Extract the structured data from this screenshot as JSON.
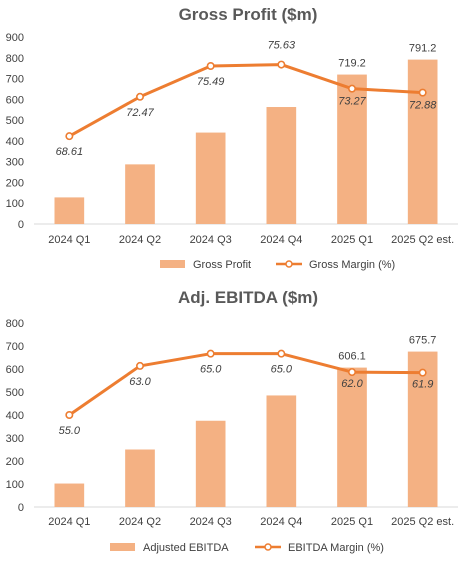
{
  "colors": {
    "bar": "#f4b183",
    "line": "#ed7d31",
    "axis": "#d9d9d9",
    "text": "#404040",
    "title": "#595959"
  },
  "chart_data": [
    {
      "type": "bar",
      "title": "Gross Profit ($m)",
      "categories": [
        "2024 Q1",
        "2024 Q2",
        "2024 Q3",
        "2024 Q4",
        "2025 Q1",
        "2025 Q2 est."
      ],
      "yticks": [
        "0",
        "100",
        "200",
        "300",
        "400",
        "500",
        "600",
        "700",
        "800",
        "900"
      ],
      "ylim": [
        0,
        900
      ],
      "series": [
        {
          "name": "Gross Profit",
          "type": "bar",
          "values": [
            128,
            287,
            440,
            563,
            719.2,
            791.2
          ],
          "labels": [
            "",
            "",
            "",
            "",
            "719.2",
            "791.2"
          ]
        },
        {
          "name": "Gross Margin (%)",
          "type": "line",
          "values": [
            68.61,
            72.47,
            75.49,
            75.63,
            73.27,
            72.88
          ],
          "labels": [
            "68.61",
            "72.47",
            "75.49",
            "75.63",
            "73.27",
            "72.88"
          ]
        }
      ],
      "legend_position": "bottom",
      "grid": false
    },
    {
      "type": "bar",
      "title": "Adj. EBITDA ($m)",
      "categories": [
        "2024 Q1",
        "2024 Q2",
        "2024 Q3",
        "2024 Q4",
        "2025 Q1",
        "2025 Q2 est."
      ],
      "yticks": [
        "0",
        "100",
        "200",
        "300",
        "400",
        "500",
        "600",
        "700",
        "800"
      ],
      "ylim": [
        0,
        800
      ],
      "series": [
        {
          "name": "Adjusted EBITDA",
          "type": "bar",
          "values": [
            102,
            250,
            375,
            485,
            606.1,
            675.7
          ],
          "labels": [
            "",
            "",
            "",
            "",
            "606.1",
            "675.7"
          ]
        },
        {
          "name": "EBITDA Margin (%)",
          "type": "line",
          "values": [
            55.0,
            63.0,
            65.0,
            65.0,
            62.0,
            61.9
          ],
          "labels": [
            "55.0",
            "63.0",
            "65.0",
            "65.0",
            "62.0",
            "61.9"
          ]
        }
      ],
      "legend_position": "bottom",
      "grid": false
    }
  ]
}
